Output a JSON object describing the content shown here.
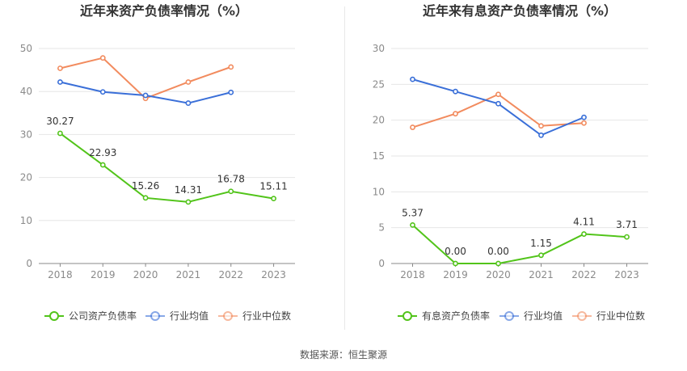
{
  "colors": {
    "company": "#52c41a",
    "industry_avg": "#3a6fd8",
    "industry_median": "#f28b5e",
    "axis_text": "#8a8a8a",
    "grid": "#e6e6e6",
    "label": "#333333",
    "divider": "#e8e8e8"
  },
  "source": "数据来源：恒生聚源",
  "chart_data": [
    {
      "type": "line",
      "title": "近年来资产负债率情况（%）",
      "categories": [
        "2018",
        "2019",
        "2020",
        "2021",
        "2022",
        "2023"
      ],
      "ylim": [
        0,
        50
      ],
      "yticks": [
        0,
        10,
        20,
        30,
        40,
        50
      ],
      "grid": true,
      "legend_position": "bottom",
      "series": [
        {
          "name": "公司资产负债率",
          "key": "company",
          "values": [
            30.27,
            22.93,
            15.26,
            14.31,
            16.78,
            15.11
          ],
          "labels": [
            "30.27",
            "22.93",
            "15.26",
            "14.31",
            "16.78",
            "15.11"
          ]
        },
        {
          "name": "行业均值",
          "key": "industry_avg",
          "values": [
            42.2,
            39.9,
            39.1,
            37.3,
            39.8,
            null
          ]
        },
        {
          "name": "行业中位数",
          "key": "industry_median",
          "values": [
            45.4,
            47.8,
            38.4,
            42.2,
            45.7,
            null
          ]
        }
      ]
    },
    {
      "type": "line",
      "title": "近年来有息资产负债率情况（%）",
      "categories": [
        "2018",
        "2019",
        "2020",
        "2021",
        "2022",
        "2023"
      ],
      "ylim": [
        0,
        30
      ],
      "yticks": [
        0,
        5,
        10,
        15,
        20,
        25,
        30
      ],
      "grid": true,
      "legend_position": "bottom",
      "series": [
        {
          "name": "有息资产负债率",
          "key": "company",
          "values": [
            5.37,
            0.0,
            0.0,
            1.15,
            4.11,
            3.71
          ],
          "labels": [
            "5.37",
            "0.00",
            "0.00",
            "1.15",
            "4.11",
            "3.71"
          ]
        },
        {
          "name": "行业均值",
          "key": "industry_avg",
          "values": [
            25.7,
            24.0,
            22.3,
            17.9,
            20.4,
            null
          ]
        },
        {
          "name": "行业中位数",
          "key": "industry_median",
          "values": [
            19.0,
            20.9,
            23.6,
            19.2,
            19.6,
            null
          ]
        }
      ]
    }
  ]
}
